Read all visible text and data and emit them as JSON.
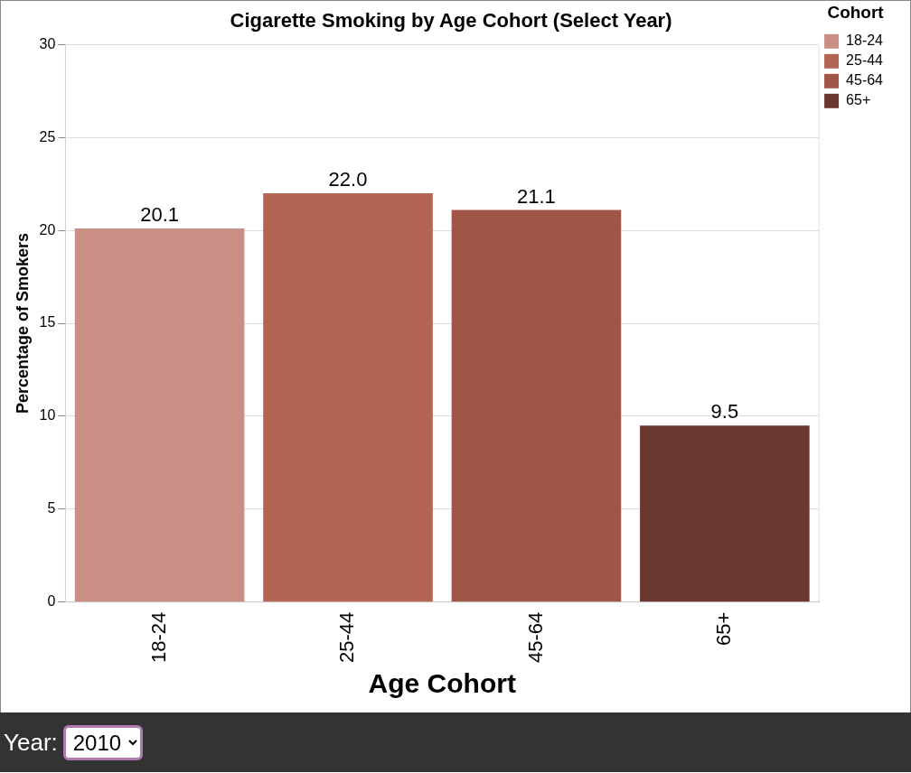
{
  "chart_data": {
    "type": "bar",
    "title": "Cigarette Smoking by Age Cohort (Select Year)",
    "xlabel": "Age Cohort",
    "ylabel": "Percentage of Smokers",
    "legend_title": "Cohort",
    "categories": [
      "18-24",
      "25-44",
      "45-64",
      "65+"
    ],
    "series": [
      {
        "name": "18-24",
        "color": "#c98f84",
        "values": [
          20.1,
          null,
          null,
          null
        ],
        "value_labels": [
          "20.1",
          null,
          null,
          null
        ]
      },
      {
        "name": "25-44",
        "color": "#b36453",
        "values": [
          null,
          22.0,
          null,
          null
        ],
        "value_labels": [
          null,
          "22.0",
          null,
          null
        ]
      },
      {
        "name": "45-64",
        "color": "#a05546",
        "values": [
          null,
          null,
          21.1,
          null
        ],
        "value_labels": [
          null,
          null,
          "21.1",
          null
        ]
      },
      {
        "name": "65+",
        "color": "#6b3830",
        "values": [
          null,
          null,
          null,
          9.5
        ],
        "value_labels": [
          null,
          null,
          null,
          "9.5"
        ]
      }
    ],
    "ylim": [
      0,
      30
    ],
    "yticks": [
      0,
      5,
      10,
      15,
      20,
      25,
      30
    ],
    "grid": "y",
    "legend": "top right",
    "annotations": [
      "Year:",
      "2010"
    ]
  }
}
